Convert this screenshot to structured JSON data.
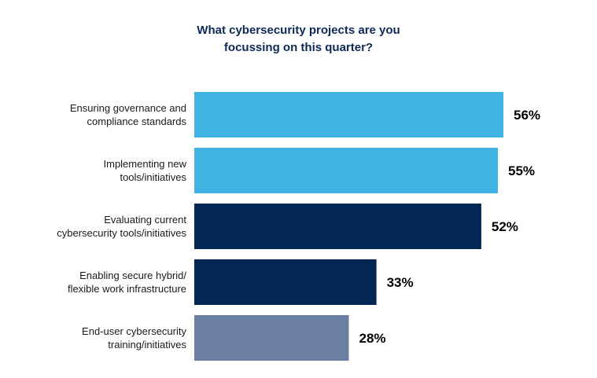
{
  "chart_data": {
    "type": "bar",
    "orientation": "horizontal",
    "title": "What cybersecurity projects are you\nfocussing on this quarter?",
    "xlabel": "",
    "ylabel": "",
    "xlim": [
      0,
      56
    ],
    "grid": false,
    "legend": "none",
    "categories": [
      "Ensuring governance and compliance standards",
      "Implementing new tools/initiatives",
      "Evaluating current cybersecurity tools/initiatives",
      "Enabling secure hybrid/ flexible work infrastructure",
      "End-user cybersecurity training/initiatives"
    ],
    "category_lines": [
      [
        "Ensuring governance and",
        "compliance standards"
      ],
      [
        "Implementing new",
        "tools/initiatives"
      ],
      [
        "Evaluating current",
        "cybersecurity tools/initiatives"
      ],
      [
        "Enabling secure hybrid/",
        "flexible work infrastructure"
      ],
      [
        "End-user cybersecurity",
        "training/initiatives"
      ]
    ],
    "values": [
      56,
      55,
      52,
      33,
      28
    ],
    "value_labels": [
      "56%",
      "55%",
      "52%",
      "33%",
      "28%"
    ],
    "colors": [
      "#41b3e2",
      "#41b3e2",
      "#032754",
      "#032754",
      "#6b7fa3"
    ]
  }
}
